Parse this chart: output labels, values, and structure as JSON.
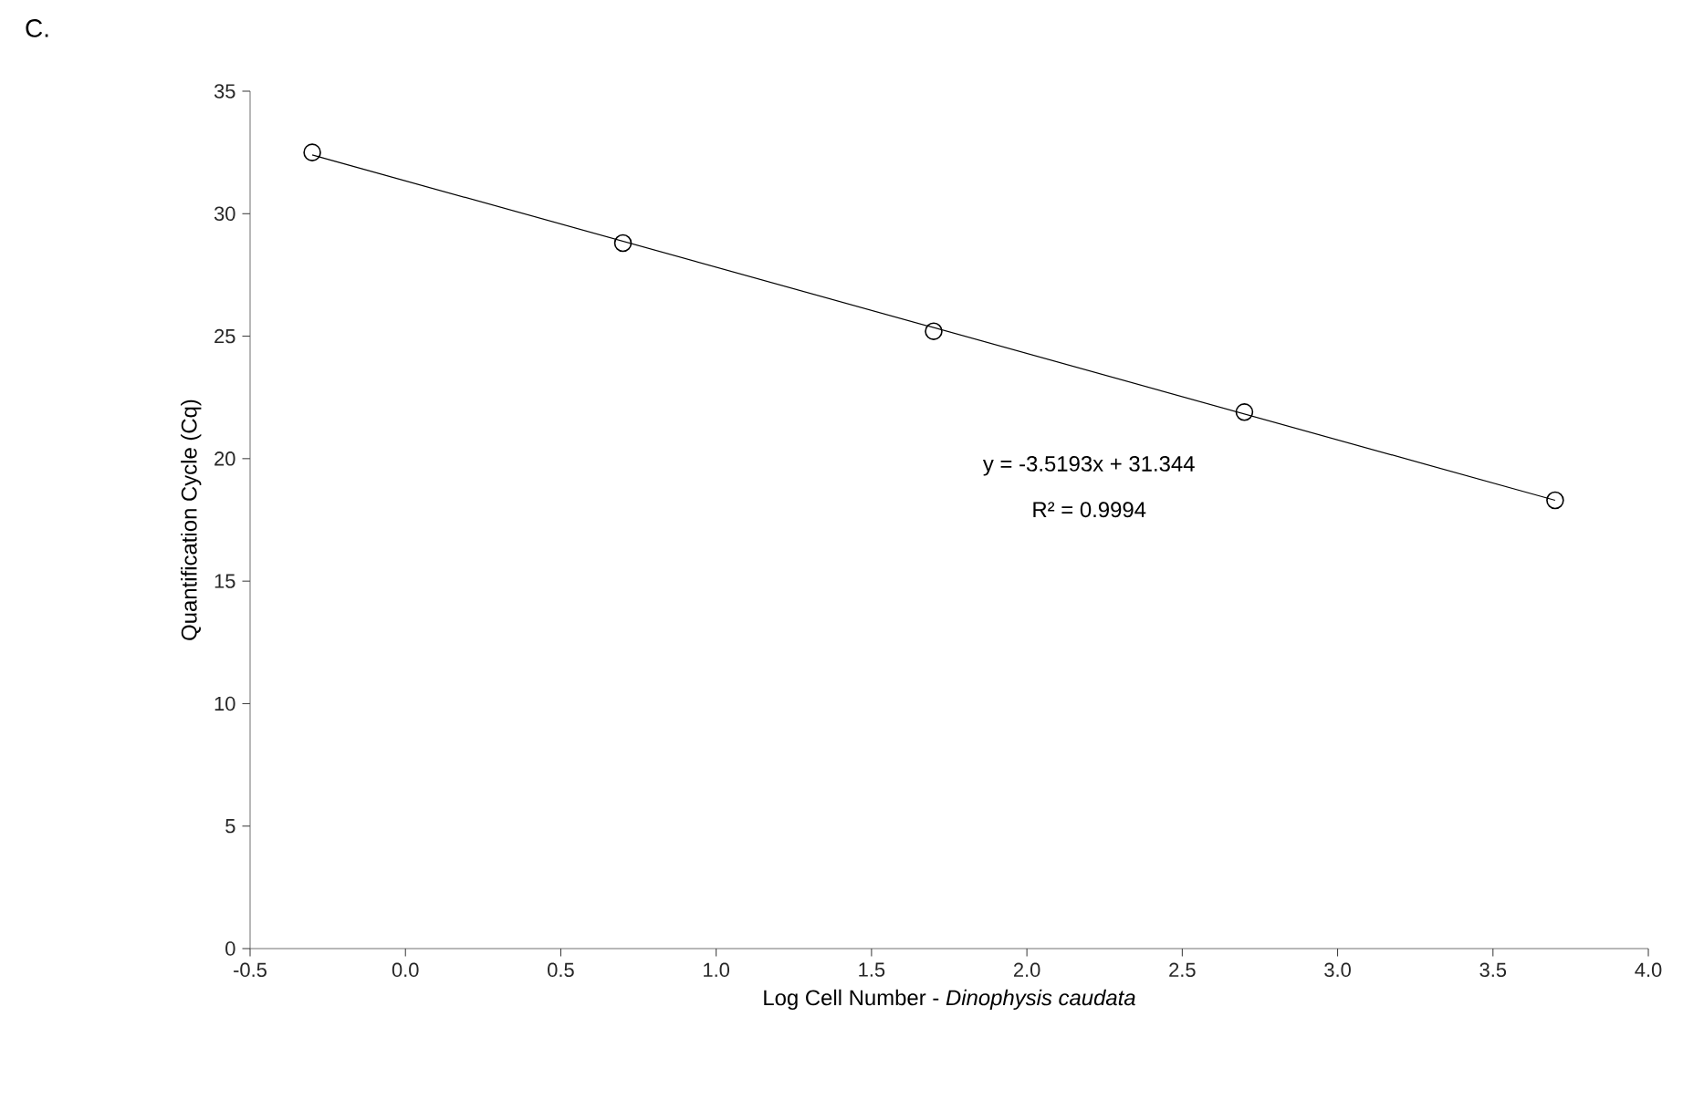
{
  "chart_data": {
    "type": "scatter",
    "title": "C.",
    "xlabel": "Log Cell Number - *Dinophysis caudata*",
    "ylabel": "Quantification Cycle (Cq)",
    "series": [
      {
        "color": "#000000",
        "marker": "circle",
        "x": [
          -0.3,
          0.7,
          1.7,
          2.7,
          3.7
        ],
        "values": [
          32.5,
          28.8,
          25.2,
          21.9,
          18.3
        ]
      },
      {
        "type": "line",
        "color": "#000000",
        "marker": "none",
        "line_style": "solid",
        "x": [
          -0.3,
          3.7
        ],
        "values": [
          32.4,
          18.3
        ]
      }
    ],
    "xlim": [
      -0.5,
      4.0
    ],
    "ylim": [
      0,
      35
    ],
    "xticks": [
      -0.5,
      {
        "value": 0,
        "label": "0.0"
      },
      0.5,
      {
        "value": 1,
        "label": "1.0"
      },
      1.5,
      {
        "value": 2,
        "label": "2.0"
      },
      2.5,
      {
        "value": 3,
        "label": "3.0"
      },
      3.5,
      {
        "value": 4,
        "label": "4.0"
      }
    ],
    "yticks": [
      0,
      5,
      10,
      15,
      20,
      25,
      30,
      35
    ],
    "annotations": [
      "y = -3.5193x + 31.344",
      "R² = 0.9994"
    ],
    "grid": false
  }
}
